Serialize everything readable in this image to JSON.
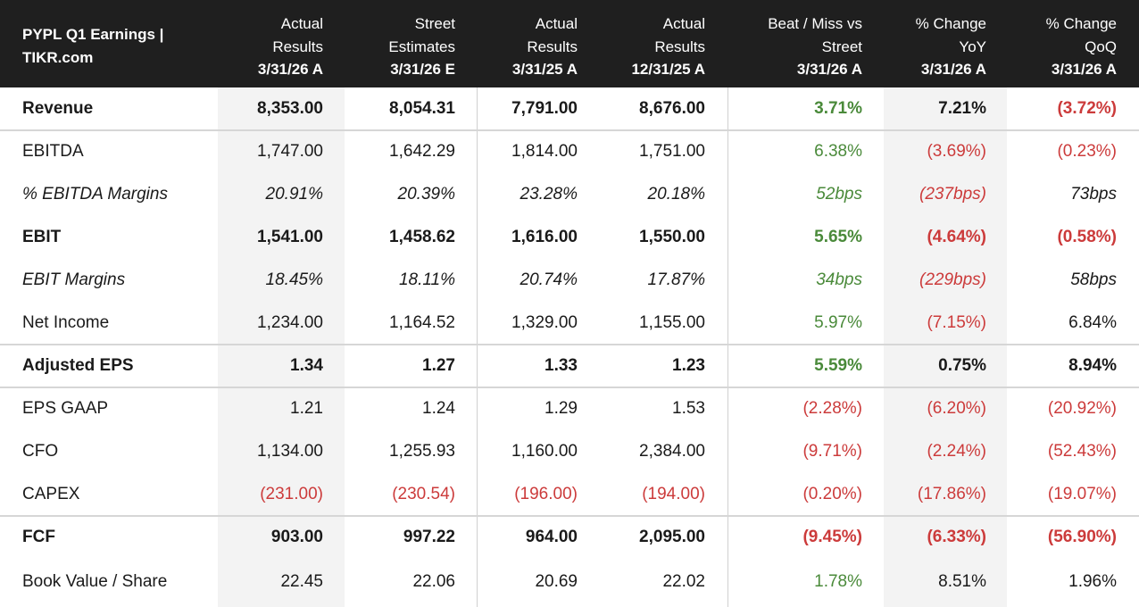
{
  "header": {
    "title": "PYPL Q1 Earnings |\nTIKR.com",
    "columns": [
      {
        "line1": "Actual",
        "line2": "Results",
        "line3": "3/31/26 A"
      },
      {
        "line1": "Street",
        "line2": "Estimates",
        "line3": "3/31/26 E"
      },
      {
        "line1": "Actual",
        "line2": "Results",
        "line3": "3/31/25 A"
      },
      {
        "line1": "Actual",
        "line2": "Results",
        "line3": "12/31/25 A"
      },
      {
        "line1": "Beat / Miss vs",
        "line2": "Street",
        "line3": "3/31/26 A"
      },
      {
        "line1": "% Change",
        "line2": "YoY",
        "line3": "3/31/26 A"
      },
      {
        "line1": "% Change",
        "line2": "QoQ",
        "line3": "3/31/26 A"
      }
    ]
  },
  "colors": {
    "positive": "#4a8a3a",
    "negative": "#cc3b3b",
    "neutral": "#1a1a1a",
    "header_bg": "#1f1f1f",
    "shaded_col": "#f3f3f3"
  },
  "rows": [
    {
      "label": "Revenue",
      "style": "bold",
      "values": [
        "8,353.00",
        "8,054.31",
        "7,791.00",
        "8,676.00"
      ],
      "beat": "3.71%",
      "beat_tone": "pos",
      "yoy": "7.21%",
      "yoy_tone": "neu",
      "qoq": "(3.72%)",
      "qoq_tone": "neg"
    },
    {
      "label": "EBITDA",
      "style": "normal",
      "values": [
        "1,747.00",
        "1,642.29",
        "1,814.00",
        "1,751.00"
      ],
      "beat": "6.38%",
      "beat_tone": "pos",
      "yoy": "(3.69%)",
      "yoy_tone": "neg",
      "qoq": "(0.23%)",
      "qoq_tone": "neg"
    },
    {
      "label": "% EBITDA Margins",
      "style": "italic",
      "values": [
        "20.91%",
        "20.39%",
        "23.28%",
        "20.18%"
      ],
      "beat": "52bps",
      "beat_tone": "pos",
      "yoy": "(237bps)",
      "yoy_tone": "neg",
      "qoq": "73bps",
      "qoq_tone": "neu"
    },
    {
      "label": "EBIT",
      "style": "bold",
      "values": [
        "1,541.00",
        "1,458.62",
        "1,616.00",
        "1,550.00"
      ],
      "beat": "5.65%",
      "beat_tone": "pos",
      "yoy": "(4.64%)",
      "yoy_tone": "neg",
      "qoq": "(0.58%)",
      "qoq_tone": "neg"
    },
    {
      "label": "EBIT Margins",
      "style": "italic",
      "values": [
        "18.45%",
        "18.11%",
        "20.74%",
        "17.87%"
      ],
      "beat": "34bps",
      "beat_tone": "pos",
      "yoy": "(229bps)",
      "yoy_tone": "neg",
      "qoq": "58bps",
      "qoq_tone": "neu"
    },
    {
      "label": "Net Income",
      "style": "normal",
      "values": [
        "1,234.00",
        "1,164.52",
        "1,329.00",
        "1,155.00"
      ],
      "beat": "5.97%",
      "beat_tone": "pos",
      "yoy": "(7.15%)",
      "yoy_tone": "neg",
      "qoq": "6.84%",
      "qoq_tone": "neu"
    },
    {
      "label": "Adjusted EPS",
      "style": "bold",
      "values": [
        "1.34",
        "1.27",
        "1.33",
        "1.23"
      ],
      "beat": "5.59%",
      "beat_tone": "pos",
      "yoy": "0.75%",
      "yoy_tone": "neu",
      "qoq": "8.94%",
      "qoq_tone": "neu"
    },
    {
      "label": "EPS GAAP",
      "style": "normal",
      "values": [
        "1.21",
        "1.24",
        "1.29",
        "1.53"
      ],
      "beat": "(2.28%)",
      "beat_tone": "neg",
      "yoy": "(6.20%)",
      "yoy_tone": "neg",
      "qoq": "(20.92%)",
      "qoq_tone": "neg"
    },
    {
      "label": "CFO",
      "style": "normal",
      "values": [
        "1,134.00",
        "1,255.93",
        "1,160.00",
        "2,384.00"
      ],
      "beat": "(9.71%)",
      "beat_tone": "neg",
      "yoy": "(2.24%)",
      "yoy_tone": "neg",
      "qoq": "(52.43%)",
      "qoq_tone": "neg"
    },
    {
      "label": "CAPEX",
      "style": "normal",
      "values": [
        "(231.00)",
        "(230.54)",
        "(196.00)",
        "(194.00)"
      ],
      "values_tone": "neg",
      "beat": "(0.20%)",
      "beat_tone": "neg",
      "yoy": "(17.86%)",
      "yoy_tone": "neg",
      "qoq": "(19.07%)",
      "qoq_tone": "neg"
    },
    {
      "label": "FCF",
      "style": "bold",
      "values": [
        "903.00",
        "997.22",
        "964.00",
        "2,095.00"
      ],
      "beat": "(9.45%)",
      "beat_tone": "neg",
      "yoy": "(6.33%)",
      "yoy_tone": "neg",
      "qoq": "(56.90%)",
      "qoq_tone": "neg"
    },
    {
      "label": "Book Value / Share",
      "style": "normal",
      "values": [
        "22.45",
        "22.06",
        "20.69",
        "22.02"
      ],
      "beat": "1.78%",
      "beat_tone": "pos",
      "yoy": "8.51%",
      "yoy_tone": "neu",
      "qoq": "1.96%",
      "qoq_tone": "neu"
    }
  ]
}
